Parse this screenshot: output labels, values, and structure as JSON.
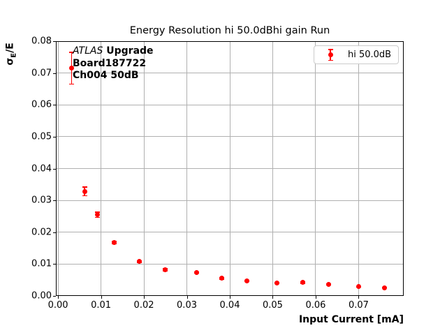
{
  "title": "Energy Resolution hi 50.0dBhi gain Run",
  "x_axis": {
    "label": "Input Current [mA]"
  },
  "y_axis": {
    "label_sigma": "σ",
    "label_sub": "E",
    "label_rest": "/E"
  },
  "annotation": {
    "line1_italic": "ATLAS",
    "line1_bold": " Upgrade",
    "line2": "Board187722",
    "line3": "Ch004 50dB"
  },
  "legend": {
    "label": "hi 50.0dB"
  },
  "colors": {
    "series": "#ff0000",
    "grid": "#b0b0b0",
    "spine": "#000000",
    "legend_border": "#cccccc"
  },
  "chart_data": {
    "type": "scatter",
    "title": "Energy Resolution hi 50.0dBhi gain Run",
    "xlabel": "Input Current [mA]",
    "ylabel": "σ_E/E",
    "xlim": [
      -0.0005,
      0.0805
    ],
    "ylim": [
      0,
      0.08
    ],
    "grid": true,
    "legend_position": "upper right",
    "xticks": {
      "values": [
        0.0,
        0.01,
        0.02,
        0.03,
        0.04,
        0.05,
        0.06,
        0.07
      ],
      "labels": [
        "0.00",
        "0.01",
        "0.02",
        "0.03",
        "0.04",
        "0.05",
        "0.06",
        "0.07"
      ]
    },
    "yticks": {
      "values": [
        0.0,
        0.01,
        0.02,
        0.03,
        0.04,
        0.05,
        0.06,
        0.07,
        0.08
      ],
      "labels": [
        "0.00",
        "0.01",
        "0.02",
        "0.03",
        "0.04",
        "0.05",
        "0.06",
        "0.07",
        "0.08"
      ]
    },
    "series": [
      {
        "name": "hi 50.0dB",
        "color": "#ff0000",
        "marker": "o",
        "x": [
          0.0032,
          0.0062,
          0.0092,
          0.0131,
          0.019,
          0.025,
          0.0322,
          0.0381,
          0.044,
          0.051,
          0.057,
          0.063,
          0.07,
          0.076
        ],
        "y": [
          0.0715,
          0.0328,
          0.0255,
          0.0167,
          0.0108,
          0.0082,
          0.0073,
          0.0055,
          0.0047,
          0.0041,
          0.0042,
          0.0036,
          0.0029,
          0.0026
        ],
        "yerr": [
          0.005,
          0.0014,
          0.0008,
          0.0004,
          0.0003,
          0.0003,
          0.0002,
          0.0002,
          0.0002,
          0.0002,
          0.0002,
          0.0001,
          0.0001,
          0.0001
        ]
      }
    ]
  }
}
